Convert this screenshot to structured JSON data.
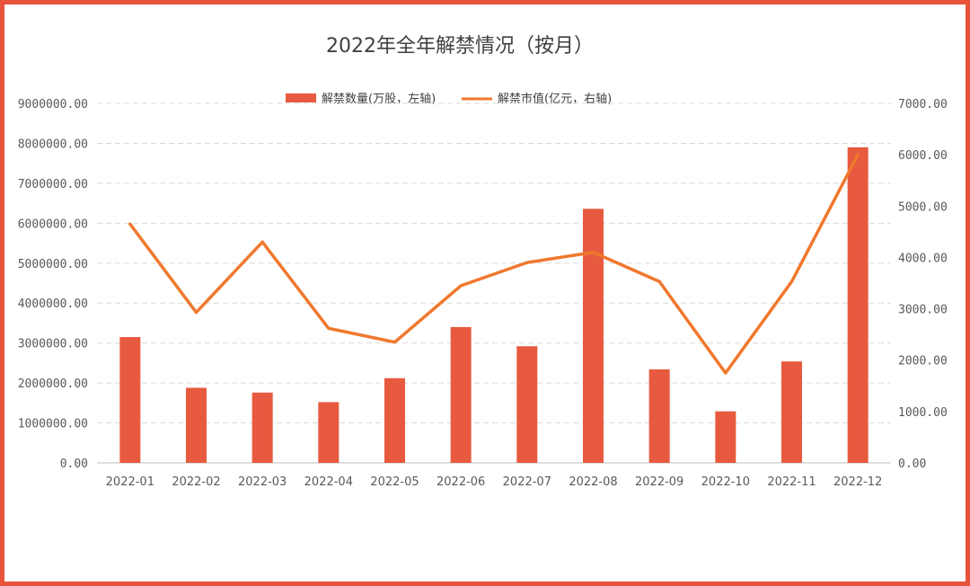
{
  "chart_data": {
    "type": "bar",
    "title": "2022年全年解禁情况（按月）",
    "categories": [
      "2022-01",
      "2022-02",
      "2022-03",
      "2022-04",
      "2022-05",
      "2022-06",
      "2022-07",
      "2022-08",
      "2022-09",
      "2022-10",
      "2022-11",
      "2022-12"
    ],
    "series": [
      {
        "name": "解禁数量(万股，左轴)",
        "type": "bar",
        "axis": "left",
        "color": "#e85a3f",
        "values": [
          3150000,
          1880000,
          1760000,
          1520000,
          2120000,
          3400000,
          2920000,
          6360000,
          2340000,
          1290000,
          2540000,
          7900000
        ]
      },
      {
        "name": "解禁市值(亿元，右轴)",
        "type": "line",
        "axis": "right",
        "color": "#f0782d",
        "values": [
          4650,
          2930,
          4300,
          2620,
          2350,
          3450,
          3900,
          4100,
          3530,
          1750,
          3530,
          6000
        ]
      }
    ],
    "y_left": {
      "min": 0,
      "max": 9000000,
      "ticks": [
        "0.00",
        "1000000.00",
        "2000000.00",
        "3000000.00",
        "4000000.00",
        "5000000.00",
        "6000000.00",
        "7000000.00",
        "8000000.00",
        "9000000.00"
      ]
    },
    "y_right": {
      "min": 0,
      "max": 7000,
      "ticks": [
        "0.00",
        "1000.00",
        "2000.00",
        "3000.00",
        "4000.00",
        "5000.00",
        "6000.00",
        "7000.00"
      ]
    },
    "grid": true,
    "legend_position": "top-center"
  },
  "frame_color": "#e8533c",
  "grid_color": "#d9d9d9",
  "axis_color": "#bfbfbf"
}
